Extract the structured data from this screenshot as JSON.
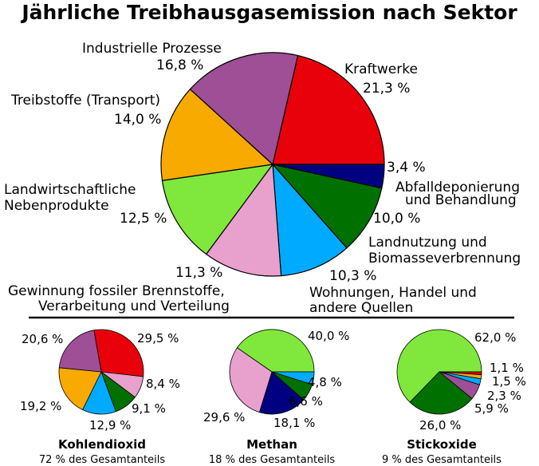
{
  "title": "Jährliche Treibhausgasemission nach Sektor",
  "chart_data": [
    {
      "type": "pie",
      "slices": [
        {
          "name": "Kraftwerke",
          "value": 21.3,
          "label": "21,3 %",
          "color": "#e8000b"
        },
        {
          "name": "Abfalldeponierung und Behandlung",
          "value": 3.4,
          "label": "3,4 %",
          "color": "#000080"
        },
        {
          "name": "Landnutzung und Biomasseverbrennung",
          "value": 10.0,
          "label": "10,0 %",
          "color": "#007000"
        },
        {
          "name": "Wohnungen, Handel und andere Quellen",
          "value": 10.3,
          "label": "10,3 %",
          "color": "#00aaff"
        },
        {
          "name": "Gewinnung fossiler Brennstoffe, Verarbeitung und Verteilung",
          "value": 11.3,
          "label": "11,3 %",
          "color": "#e8a0cc"
        },
        {
          "name": "Landwirtschaftliche Nebenprodukte",
          "value": 12.5,
          "label": "12,5 %",
          "color": "#80e83c"
        },
        {
          "name": "Treibstoffe (Transport)",
          "value": 14.0,
          "label": "14,0 %",
          "color": "#f9aa00"
        },
        {
          "name": "Industrielle Prozesse",
          "value": 16.8,
          "label": "16,8 %",
          "color": "#9e4f96"
        }
      ]
    },
    {
      "type": "pie",
      "title": "Kohlendioxid",
      "subtitle": "72 % des Gesamtanteils",
      "slices": [
        {
          "name": "Kraftwerke",
          "value": 29.5,
          "label": "29,5 %",
          "color": "#e8000b"
        },
        {
          "name": "Gewinnung fossiler Brennstoffe, Verarbeitung und Verteilung",
          "value": 8.4,
          "label": "8,4 %",
          "color": "#e8a0cc"
        },
        {
          "name": "Landnutzung und Biomasseverbrennung",
          "value": 9.1,
          "label": "9,1 %",
          "color": "#007000"
        },
        {
          "name": "Wohnungen, Handel und andere Quellen",
          "value": 12.9,
          "label": "12,9 %",
          "color": "#00aaff"
        },
        {
          "name": "Treibstoffe (Transport)",
          "value": 19.2,
          "label": "19,2 %",
          "color": "#f9aa00"
        },
        {
          "name": "Industrielle Prozesse",
          "value": 20.6,
          "label": "20,6 %",
          "color": "#9e4f96"
        }
      ]
    },
    {
      "type": "pie",
      "title": "Methan",
      "subtitle": "18 % des Gesamtanteils",
      "slices": [
        {
          "name": "Landwirtschaftliche Nebenprodukte",
          "value": 40.0,
          "label": "40,0 %",
          "color": "#80e83c"
        },
        {
          "name": "Wohnungen, Handel und andere Quellen",
          "value": 4.8,
          "label": "4,8 %",
          "color": "#00aaff"
        },
        {
          "name": "Landnutzung und Biomasseverbrennung",
          "value": 6.6,
          "label": "6,6 %",
          "color": "#007000"
        },
        {
          "name": "Abfalldeponierung und Behandlung",
          "value": 18.1,
          "label": "18,1 %",
          "color": "#000080"
        },
        {
          "name": "Gewinnung fossiler Brennstoffe, Verarbeitung und Verteilung",
          "value": 29.6,
          "label": "29,6 %",
          "color": "#e8a0cc"
        }
      ]
    },
    {
      "type": "pie",
      "title": "Stickoxide",
      "subtitle": "9 % des Gesamtanteils",
      "slices": [
        {
          "name": "Landwirtschaftliche Nebenprodukte",
          "value": 62.0,
          "label": "62,0 %",
          "color": "#80e83c"
        },
        {
          "name": "Kraftwerke",
          "value": 1.1,
          "label": "1,1 %",
          "color": "#e8000b"
        },
        {
          "name": "Treibstoffe (Transport)",
          "value": 1.5,
          "label": "1,5 %",
          "color": "#f9aa00"
        },
        {
          "name": "Wohnungen, Handel und andere Quellen",
          "value": 2.3,
          "label": "2,3 %",
          "color": "#00aaff"
        },
        {
          "name": "Industrielle Prozesse",
          "value": 5.9,
          "label": "5,9 %",
          "color": "#9e4f96"
        },
        {
          "name": "Landnutzung und Biomasseverbrennung",
          "value": 26.0,
          "label": "26,0 %",
          "color": "#007000"
        }
      ]
    }
  ],
  "main_labels": [
    {
      "key": "kraftwerke",
      "lines": [
        "Kraftwerke",
        "21,3 %"
      ]
    },
    {
      "key": "abfall",
      "lines": [
        "3,4 %",
        "Abfalldeponierung",
        "und Behandlung"
      ]
    },
    {
      "key": "landnutzung",
      "lines": [
        "10,0 %",
        "Landnutzung und",
        "Biomasseverbrennung"
      ]
    },
    {
      "key": "wohnungen",
      "lines": [
        "10,3 %",
        "Wohnungen, Handel und",
        "andere Quellen"
      ]
    },
    {
      "key": "gewinnung",
      "lines": [
        "11,3 %",
        "Gewinnung fossiler Brennstoffe,",
        "Verarbeitung und Verteilung"
      ]
    },
    {
      "key": "landwirtschaft",
      "lines": [
        "Landwirtschaftliche",
        "Nebenprodukte",
        "12,5 %"
      ]
    },
    {
      "key": "treibstoffe",
      "lines": [
        "Treibstoffe (Transport)",
        "14,0 %"
      ]
    },
    {
      "key": "industrie",
      "lines": [
        "Industrielle Prozesse",
        "16,8 %"
      ]
    }
  ]
}
